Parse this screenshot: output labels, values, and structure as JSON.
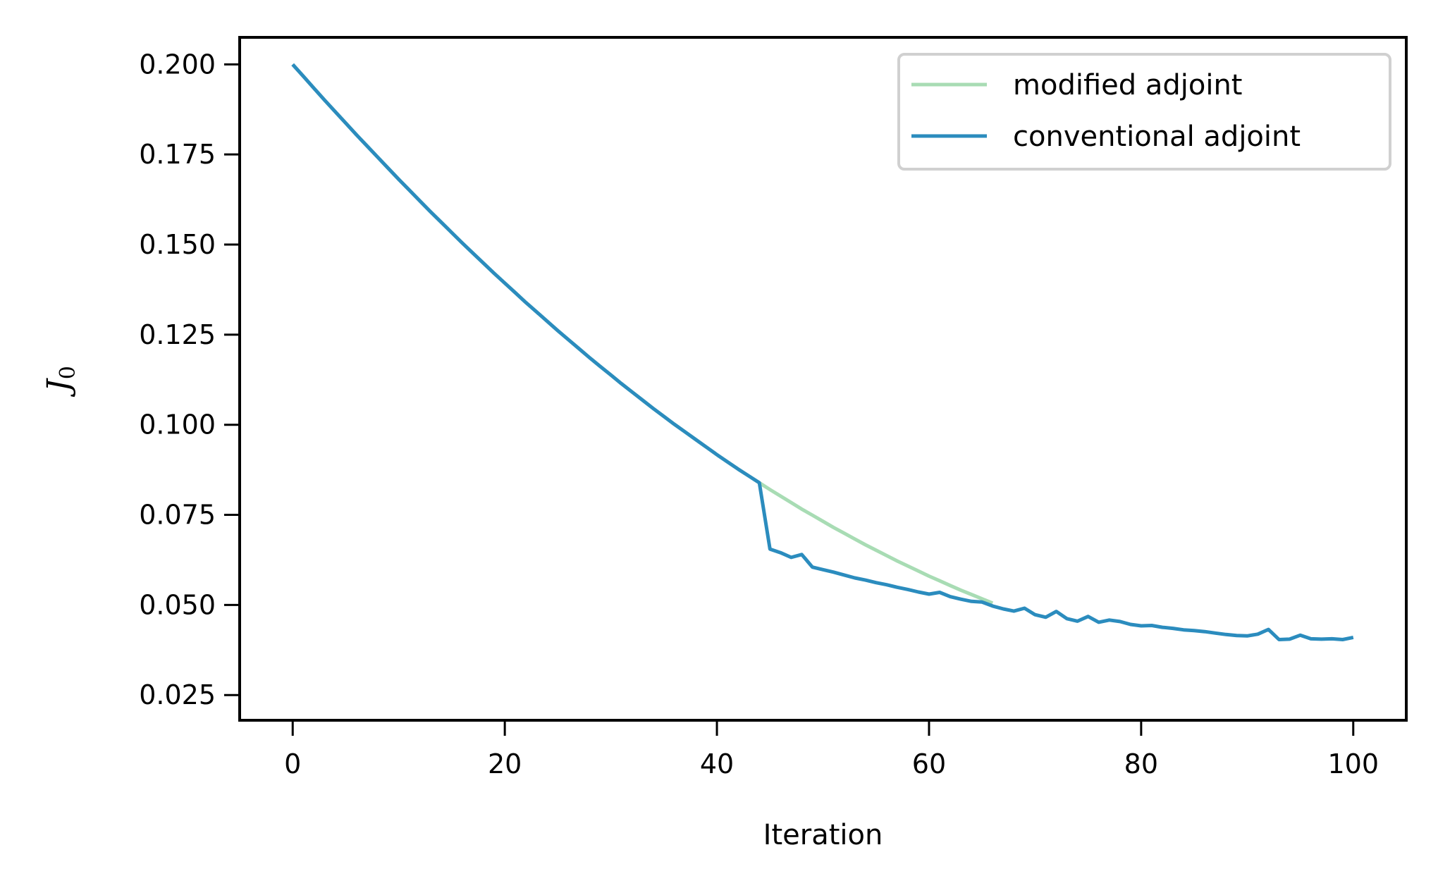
{
  "chart_data": {
    "type": "line",
    "title": "",
    "xlabel": "Iteration",
    "ylabel": {
      "main": "J",
      "sub": "0"
    },
    "xlim": [
      -5,
      105
    ],
    "ylim": [
      0.018,
      0.2075
    ],
    "xticks": [
      0,
      20,
      40,
      60,
      80,
      100
    ],
    "xtick_labels": [
      "0",
      "20",
      "40",
      "60",
      "80",
      "100"
    ],
    "yticks": [
      0.025,
      0.05,
      0.075,
      0.1,
      0.125,
      0.15,
      0.175,
      0.2
    ],
    "ytick_labels": [
      "0.025",
      "0.050",
      "0.075",
      "0.100",
      "0.125",
      "0.150",
      "0.175",
      "0.200"
    ],
    "grid": false,
    "legend_position": "top-right",
    "series": [
      {
        "name": "modified adjoint",
        "color": "#a8dcb4",
        "x": [
          0,
          1,
          2,
          3,
          4,
          5,
          6,
          7,
          8,
          9,
          10,
          11,
          12,
          13,
          14,
          15,
          16,
          17,
          18,
          19,
          20,
          21,
          22,
          23,
          24,
          25,
          26,
          27,
          28,
          29,
          30,
          31,
          32,
          33,
          34,
          35,
          36,
          37,
          38,
          39,
          40,
          41,
          42,
          43,
          44,
          45,
          46,
          47,
          48,
          49,
          50,
          51,
          52,
          53,
          54,
          55,
          56,
          57,
          58,
          59,
          60,
          61,
          62,
          63,
          64,
          65,
          66
        ],
        "y": [
          0.2,
          0.1967,
          0.1934,
          0.1901,
          0.1869,
          0.1837,
          0.1805,
          0.1774,
          0.1743,
          0.1712,
          0.1681,
          0.1651,
          0.1621,
          0.1591,
          0.1562,
          0.1533,
          0.1504,
          0.1476,
          0.1448,
          0.142,
          0.1393,
          0.1366,
          0.1339,
          0.1313,
          0.1287,
          0.1261,
          0.1236,
          0.1211,
          0.1186,
          0.1162,
          0.1138,
          0.1114,
          0.1091,
          0.1068,
          0.1045,
          0.1023,
          0.1001,
          0.098,
          0.0959,
          0.0938,
          0.0917,
          0.0897,
          0.0877,
          0.0858,
          0.0839,
          0.082,
          0.0802,
          0.0784,
          0.0766,
          0.0749,
          0.0732,
          0.0715,
          0.0699,
          0.0683,
          0.0667,
          0.0652,
          0.0637,
          0.0622,
          0.0608,
          0.0594,
          0.058,
          0.0567,
          0.0554,
          0.0541,
          0.0529,
          0.0517,
          0.0505
        ]
      },
      {
        "name": "conventional adjoint",
        "color": "#2b8cbe",
        "x": [
          0,
          1,
          2,
          3,
          4,
          5,
          6,
          7,
          8,
          9,
          10,
          11,
          12,
          13,
          14,
          15,
          16,
          17,
          18,
          19,
          20,
          21,
          22,
          23,
          24,
          25,
          26,
          27,
          28,
          29,
          30,
          31,
          32,
          33,
          34,
          35,
          36,
          37,
          38,
          39,
          40,
          41,
          42,
          43,
          44,
          45,
          46,
          47,
          48,
          49,
          50,
          51,
          52,
          53,
          54,
          55,
          56,
          57,
          58,
          59,
          60,
          61,
          62,
          63,
          64,
          65,
          66,
          67,
          68,
          69,
          70,
          71,
          72,
          73,
          74,
          75,
          76,
          77,
          78,
          79,
          80,
          81,
          82,
          83,
          84,
          85,
          86,
          87,
          88,
          89,
          90,
          91,
          92,
          93,
          94,
          95,
          96,
          97,
          98,
          99,
          100
        ],
        "y": [
          0.2,
          0.1967,
          0.1934,
          0.1901,
          0.1869,
          0.1837,
          0.1805,
          0.1774,
          0.1743,
          0.1712,
          0.1681,
          0.1651,
          0.1621,
          0.1591,
          0.1562,
          0.1533,
          0.1504,
          0.1476,
          0.1448,
          0.142,
          0.1393,
          0.1366,
          0.1339,
          0.1313,
          0.1287,
          0.1261,
          0.1236,
          0.1211,
          0.1186,
          0.1162,
          0.1138,
          0.1114,
          0.1091,
          0.1068,
          0.1045,
          0.1023,
          0.1001,
          0.098,
          0.0959,
          0.0938,
          0.0917,
          0.0897,
          0.0877,
          0.0858,
          0.0839,
          0.0655,
          0.0645,
          0.0632,
          0.064,
          0.0605,
          0.0598,
          0.0591,
          0.0583,
          0.0575,
          0.0569,
          0.0562,
          0.0556,
          0.0549,
          0.0543,
          0.0536,
          0.053,
          0.0535,
          0.0523,
          0.0516,
          0.051,
          0.0508,
          0.0497,
          0.0489,
          0.0483,
          0.0491,
          0.0473,
          0.0466,
          0.0482,
          0.0462,
          0.0455,
          0.0468,
          0.0452,
          0.0458,
          0.0454,
          0.0446,
          0.0442,
          0.0443,
          0.0438,
          0.0435,
          0.0431,
          0.0429,
          0.0426,
          0.0422,
          0.0418,
          0.0415,
          0.0414,
          0.0419,
          0.0432,
          0.0404,
          0.0405,
          0.0416,
          0.0406,
          0.0405,
          0.0406,
          0.0404,
          0.041
        ]
      }
    ]
  }
}
